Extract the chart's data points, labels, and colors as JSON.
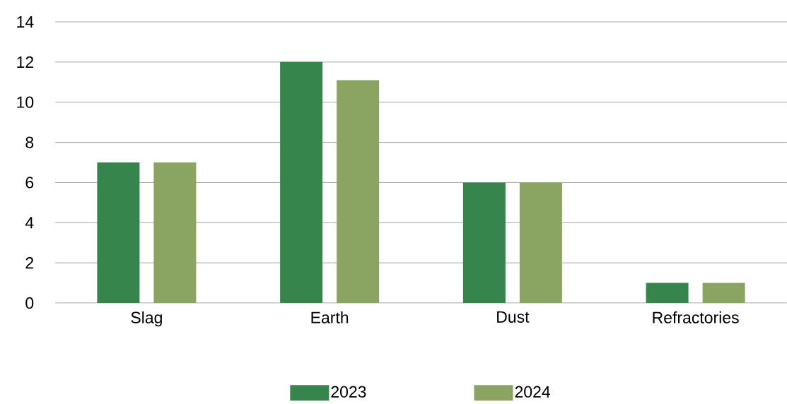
{
  "chart_data": {
    "type": "bar",
    "categories": [
      "Slag",
      "Earth",
      "Dust",
      "Refractories"
    ],
    "series": [
      {
        "name": "2023",
        "color": "#36854d",
        "values": [
          7,
          12,
          6,
          1
        ]
      },
      {
        "name": "2024",
        "color": "#8aa462",
        "values": [
          7,
          11.1,
          6,
          1
        ]
      }
    ],
    "ylim": [
      0,
      14
    ],
    "yticks": [
      0,
      2,
      4,
      6,
      8,
      10,
      12,
      14
    ],
    "grid": "y",
    "legend": "bottom"
  }
}
